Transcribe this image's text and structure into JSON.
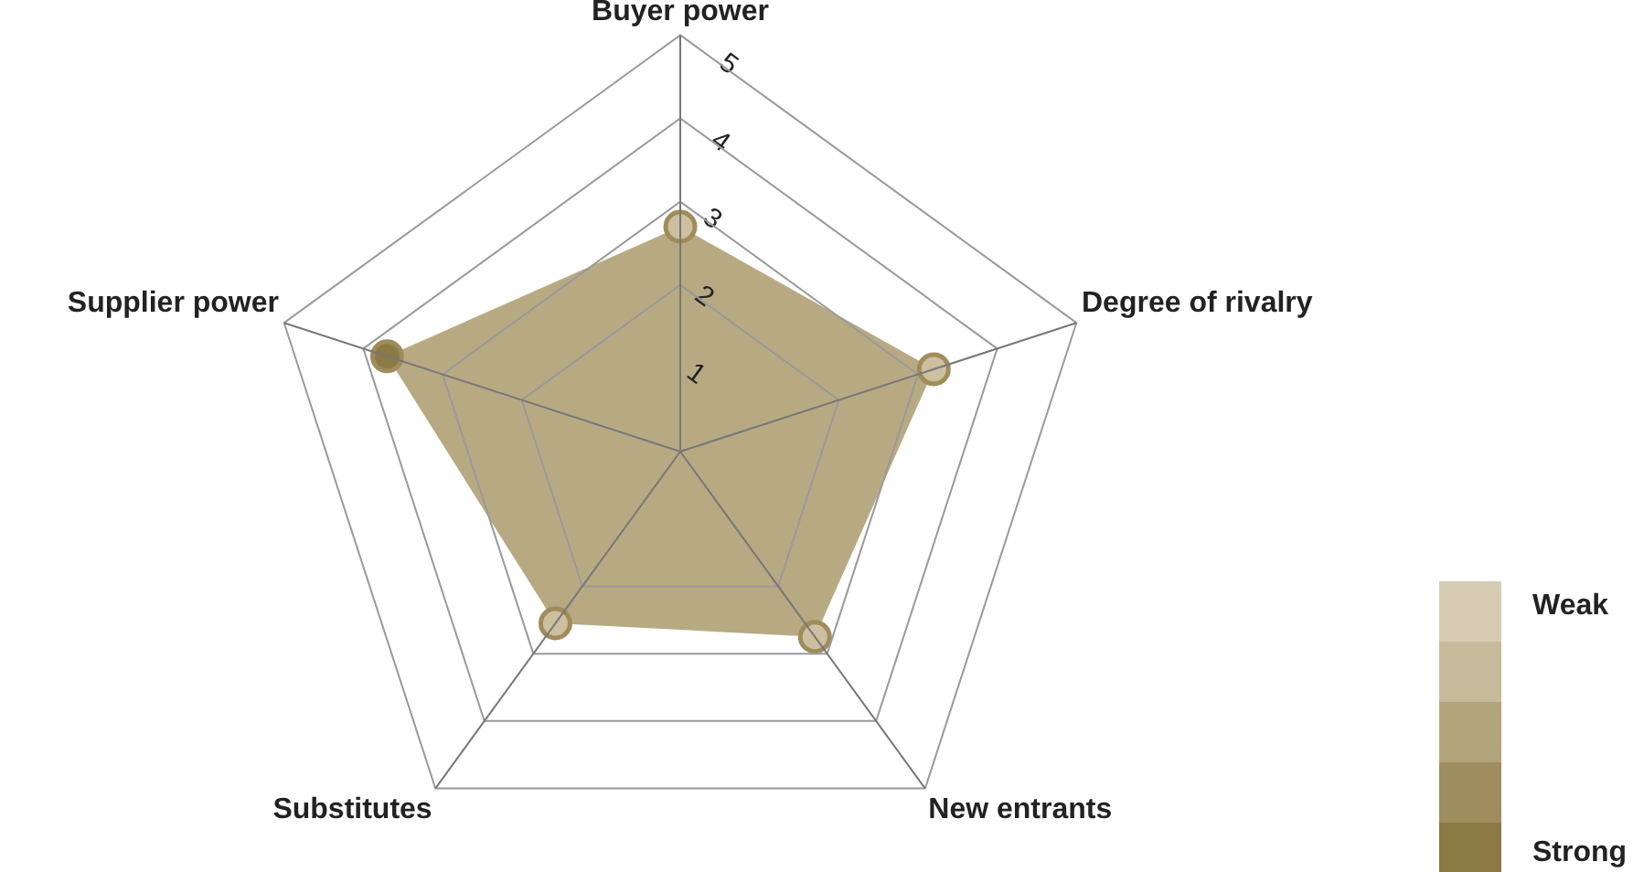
{
  "chart_data": {
    "type": "radar",
    "categories": [
      "Buyer power",
      "Degree of rivalry",
      "New entrants",
      "Substitutes",
      "Supplier power"
    ],
    "series": [
      {
        "color": "#b2a47a",
        "colors": [
          "#cdc0a0",
          "#cdc0a0",
          "#cdc0a0",
          "#cdc0a0",
          "#8c7a45"
        ],
        "values": [
          2.7,
          3.2,
          2.75,
          2.55,
          3.7
        ]
      }
    ],
    "ylim": [
      0,
      5
    ],
    "yticks": [
      1,
      2,
      3,
      4,
      5
    ],
    "grid": true,
    "marker": "circle",
    "legend": false,
    "annotations": [
      "Weak",
      "Strong"
    ]
  }
}
